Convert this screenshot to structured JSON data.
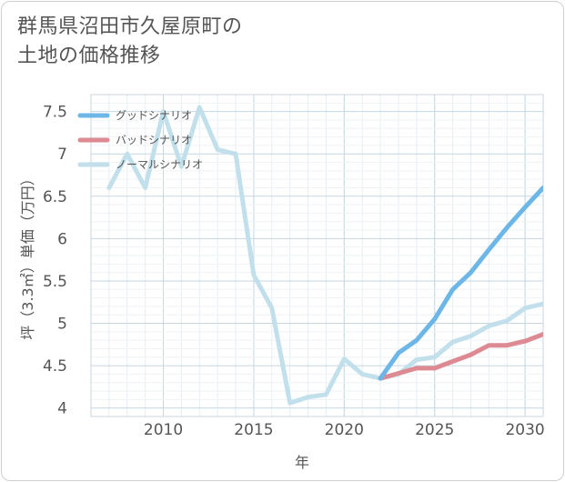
{
  "title": {
    "line1": "群馬県沼田市久屋原町の",
    "line2": "土地の価格推移"
  },
  "chart_data": {
    "type": "line",
    "xlabel": "年",
    "ylabel": "坪（3.3㎡）単価（万円）",
    "xlim": [
      2006,
      2031
    ],
    "ylim": [
      3.9,
      7.7
    ],
    "xticks": [
      2010,
      2015,
      2020,
      2025,
      2030
    ],
    "yticks": [
      4,
      4.5,
      5,
      5.5,
      6,
      6.5,
      7,
      7.5
    ],
    "ytick_labels": [
      "4",
      "4.5",
      "5",
      "5.5",
      "6",
      "6.5",
      "7",
      "7.5"
    ],
    "grid": true,
    "legend_position": "top-left",
    "series": [
      {
        "name": "グッドシナリオ",
        "color": "#6cb6e8",
        "x": [
          2022,
          2023,
          2024,
          2025,
          2026,
          2027,
          2028,
          2029,
          2030,
          2031
        ],
        "values": [
          4.35,
          4.65,
          4.8,
          5.05,
          5.4,
          5.6,
          5.87,
          6.13,
          6.37,
          6.6
        ]
      },
      {
        "name": "バッドシナリオ",
        "color": "#de8a93",
        "x": [
          2022,
          2023,
          2024,
          2025,
          2026,
          2027,
          2028,
          2029,
          2030,
          2031
        ],
        "values": [
          4.35,
          4.41,
          4.47,
          4.47,
          4.55,
          4.63,
          4.74,
          4.74,
          4.79,
          4.87
        ]
      },
      {
        "name": "ノーマルシナリオ",
        "color": "#c2dfec",
        "x": [
          2007,
          2008,
          2009,
          2010,
          2011,
          2012,
          2013,
          2014,
          2015,
          2016,
          2017,
          2018,
          2019,
          2020,
          2021,
          2022,
          2023,
          2024,
          2025,
          2026,
          2027,
          2028,
          2029,
          2030,
          2031
        ],
        "values": [
          6.6,
          7.0,
          6.6,
          7.5,
          6.85,
          7.55,
          7.05,
          7.0,
          5.57,
          5.18,
          4.06,
          4.13,
          4.16,
          4.58,
          4.4,
          4.35,
          4.4,
          4.57,
          4.6,
          4.78,
          4.85,
          4.97,
          5.03,
          5.18,
          5.23
        ]
      }
    ]
  }
}
